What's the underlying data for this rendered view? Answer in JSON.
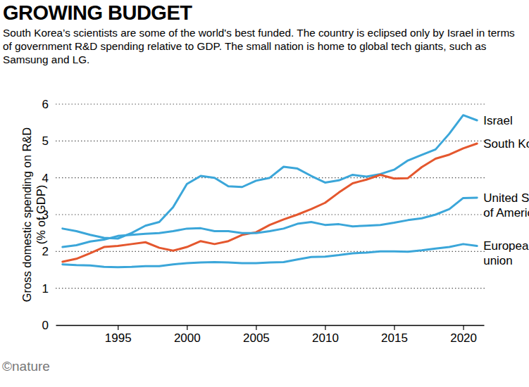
{
  "chart_data": {
    "type": "line",
    "title": "GROWING BUDGET",
    "subtitle": "South Korea’s scientists are some of the world's best funded. The country is eclipsed only by Israel in terms of government R&D spending relative to GDP. The small nation is home to global tech giants, such as Samsung and LG.",
    "y_label": [
      "Gross domestic spending on R&D",
      "(% of GDP)"
    ],
    "source": "©nature",
    "x": [
      1991,
      1992,
      1993,
      1994,
      1995,
      1996,
      1997,
      1998,
      1999,
      2000,
      2001,
      2002,
      2003,
      2004,
      2005,
      2006,
      2007,
      2008,
      2009,
      2010,
      2011,
      2012,
      2013,
      2014,
      2015,
      2016,
      2017,
      2018,
      2019,
      2020,
      2021
    ],
    "xlim": [
      1990.5,
      2021.5
    ],
    "xticks": [
      1995,
      2000,
      2005,
      2010,
      2015,
      2020
    ],
    "ylim": [
      0,
      6
    ],
    "yticks": [
      0,
      1,
      2,
      3,
      4,
      5,
      6
    ],
    "grid": true,
    "series": [
      {
        "name": "Israel",
        "color": "#3ba6d9",
        "values": [
          2.62,
          2.55,
          2.45,
          2.37,
          2.35,
          2.5,
          2.7,
          2.8,
          3.2,
          3.83,
          4.05,
          4.0,
          3.77,
          3.75,
          3.92,
          4.0,
          4.3,
          4.25,
          4.05,
          3.87,
          3.93,
          4.08,
          4.03,
          4.1,
          4.22,
          4.47,
          4.62,
          4.77,
          5.2,
          5.7,
          5.56
        ]
      },
      {
        "name": "South Korea",
        "color": "#e4572e",
        "values": [
          1.72,
          1.8,
          1.95,
          2.12,
          2.15,
          2.2,
          2.25,
          2.1,
          2.02,
          2.12,
          2.28,
          2.2,
          2.28,
          2.45,
          2.52,
          2.72,
          2.87,
          3.0,
          3.15,
          3.32,
          3.6,
          3.85,
          3.95,
          4.08,
          3.98,
          3.99,
          4.29,
          4.52,
          4.63,
          4.8,
          4.93
        ]
      },
      {
        "name": "United States of America",
        "color": "#3ba6d9",
        "values": [
          2.12,
          2.17,
          2.27,
          2.32,
          2.42,
          2.45,
          2.48,
          2.5,
          2.55,
          2.62,
          2.63,
          2.55,
          2.55,
          2.5,
          2.5,
          2.55,
          2.62,
          2.75,
          2.8,
          2.72,
          2.74,
          2.68,
          2.7,
          2.72,
          2.78,
          2.85,
          2.9,
          3.0,
          3.15,
          3.45,
          3.46
        ]
      },
      {
        "name": "European union",
        "color": "#3ba6d9",
        "values": [
          1.65,
          1.63,
          1.62,
          1.58,
          1.57,
          1.58,
          1.6,
          1.6,
          1.65,
          1.68,
          1.7,
          1.71,
          1.7,
          1.68,
          1.68,
          1.7,
          1.71,
          1.78,
          1.85,
          1.86,
          1.9,
          1.95,
          1.97,
          2.0,
          2.0,
          1.99,
          2.03,
          2.08,
          2.12,
          2.2,
          2.15
        ]
      }
    ]
  }
}
